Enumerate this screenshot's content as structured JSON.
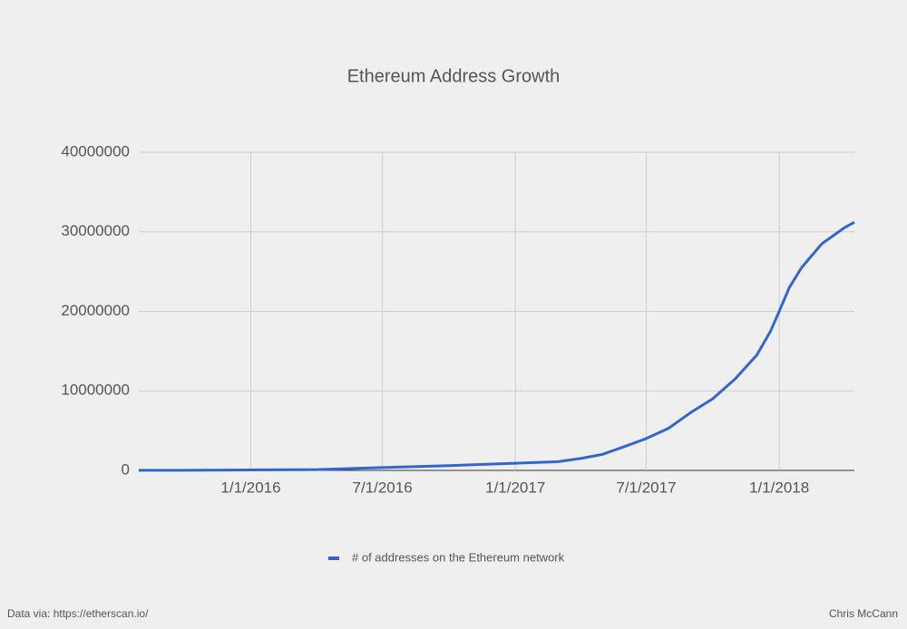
{
  "chart_data": {
    "type": "line",
    "title": "Ethereum Address Growth",
    "x": [
      "7/30/2015",
      "10/1/2015",
      "1/1/2016",
      "4/1/2016",
      "7/1/2016",
      "10/1/2016",
      "1/1/2017",
      "3/1/2017",
      "4/1/2017",
      "5/1/2017",
      "6/1/2017",
      "7/1/2017",
      "8/1/2017",
      "9/1/2017",
      "10/1/2017",
      "11/1/2017",
      "12/1/2017",
      "12/20/2017",
      "1/1/2018",
      "1/15/2018",
      "2/1/2018",
      "3/1/2018",
      "4/1/2018",
      "4/15/2018"
    ],
    "series": [
      {
        "name": "# of addresses on the Ethereum network",
        "color": "#3366cc",
        "values": [
          10000,
          20000,
          50000,
          100000,
          350000,
          600000,
          900000,
          1100000,
          1500000,
          2000000,
          3000000,
          4000000,
          5300000,
          7300000,
          9000000,
          11500000,
          14500000,
          17500000,
          20000000,
          23000000,
          25500000,
          28500000,
          30500000,
          31200000
        ]
      }
    ],
    "xlim": [
      "7/30/2015",
      "4/15/2018"
    ],
    "xticks": [
      "1/1/2016",
      "7/1/2016",
      "1/1/2017",
      "7/1/2017",
      "1/1/2018"
    ],
    "ylim": [
      0,
      40000000
    ],
    "yticks": [
      0,
      10000000,
      20000000,
      30000000,
      40000000
    ],
    "grid": true,
    "legend": "bottom",
    "source": "Data via: https://etherscan.io/",
    "author": "Chris McCann"
  }
}
